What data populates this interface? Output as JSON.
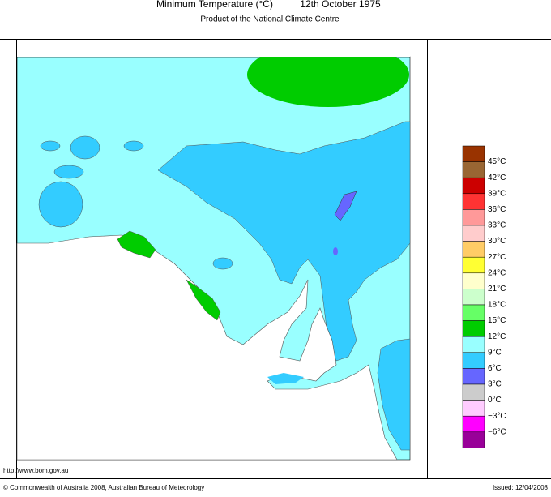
{
  "header": {
    "title": "Minimum Temperature (°C)",
    "date": "12th October 1975",
    "subtitle": "Product of the National Climate Centre"
  },
  "legend": {
    "colors": [
      "#993300",
      "#996633",
      "#cc0000",
      "#ff3333",
      "#ff9999",
      "#ffcccc",
      "#ffcc66",
      "#ffff33",
      "#ffffcc",
      "#ccffcc",
      "#66ff66",
      "#00cc00",
      "#99ffff",
      "#33ccff",
      "#6666ff",
      "#cccccc",
      "#ffccff",
      "#ff00ff",
      "#990099"
    ],
    "labels": [
      "45°C",
      "42°C",
      "39°C",
      "36°C",
      "33°C",
      "30°C",
      "27°C",
      "24°C",
      "21°C",
      "18°C",
      "15°C",
      "12°C",
      "9°C",
      "6°C",
      "3°C",
      "0°C",
      "−3°C",
      "−6°C"
    ]
  },
  "footer": {
    "url": "http://www.bom.gov.au",
    "copyright": "© Commonwealth of Australia 2008, Australian Bureau of Meteorology",
    "issued": "Issued: 12/04/2008"
  }
}
